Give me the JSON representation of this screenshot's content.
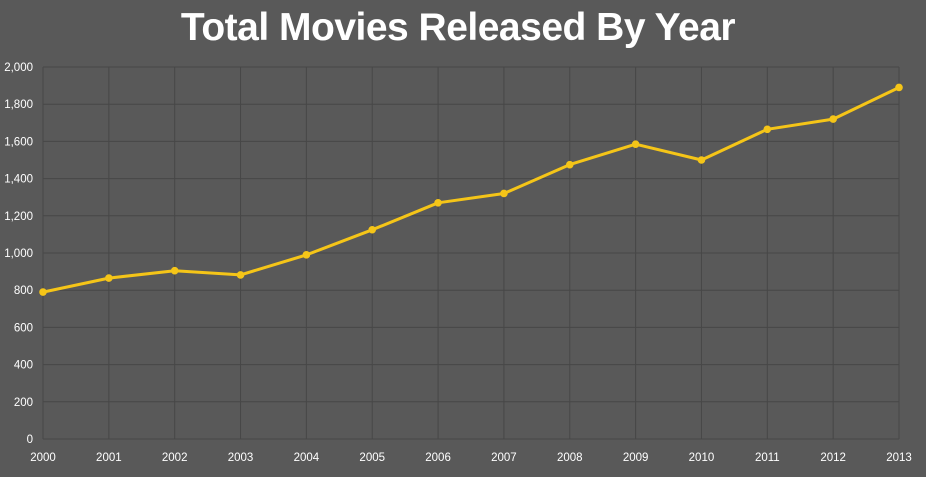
{
  "chart_data": {
    "type": "line",
    "title": "Total Movies Released By Year",
    "xlabel": "",
    "ylabel": "",
    "categories": [
      "2000",
      "2001",
      "2002",
      "2003",
      "2004",
      "2005",
      "2006",
      "2007",
      "2008",
      "2009",
      "2010",
      "2011",
      "2012",
      "2013"
    ],
    "series": [
      {
        "values": [
          790,
          865,
          905,
          882,
          990,
          1125,
          1270,
          1320,
          1475,
          1585,
          1500,
          1665,
          1720,
          1890
        ],
        "color": "#f5c518"
      }
    ],
    "ylim": [
      0,
      2000
    ],
    "yticks": [
      0,
      200,
      400,
      600,
      800,
      1000,
      1200,
      1400,
      1600,
      1800,
      2000
    ],
    "ytick_labels": [
      "0",
      "200",
      "400",
      "600",
      "800",
      "1,000",
      "1,200",
      "1,400",
      "1,600",
      "1,800",
      "2,000"
    ],
    "grid": true,
    "legend": "none",
    "colors": {
      "background": "#595959",
      "grid": "#474747",
      "text": "#ffffff",
      "line": "#f5c518"
    }
  }
}
